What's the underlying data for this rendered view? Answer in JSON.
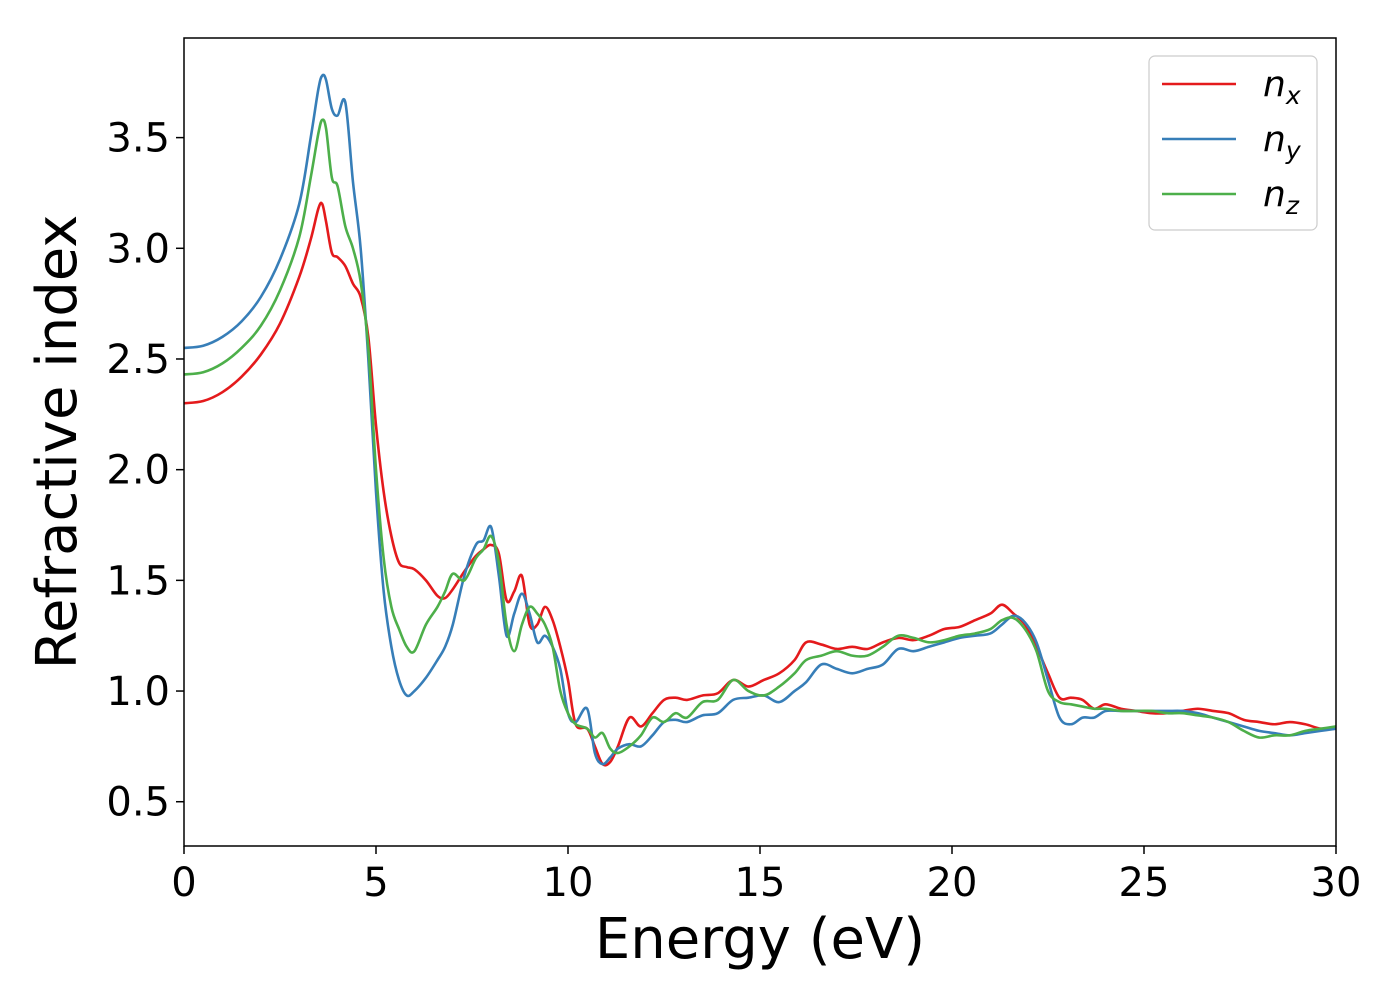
{
  "chart_data": {
    "type": "line",
    "xlabel": "Energy (eV)",
    "ylabel": "Refractive index",
    "xlim": [
      0,
      30
    ],
    "ylim": [
      0.3,
      3.95
    ],
    "xticks": [
      0,
      5,
      10,
      15,
      20,
      25,
      30
    ],
    "xtick_labels": [
      "0",
      "5",
      "10",
      "15",
      "20",
      "25",
      "30"
    ],
    "yticks": [
      0.5,
      1.0,
      1.5,
      2.0,
      2.5,
      3.0,
      3.5
    ],
    "ytick_labels": [
      "0.5",
      "1.0",
      "1.5",
      "2.0",
      "2.5",
      "3.0",
      "3.5"
    ],
    "grid": false,
    "legend_position": "top-right",
    "series": [
      {
        "name": "n",
        "subscript": "x",
        "color": "#e41a1c",
        "x": [
          0,
          0.5,
          1,
          1.5,
          2,
          2.5,
          3,
          3.3,
          3.5,
          3.6,
          3.7,
          3.85,
          4.0,
          4.2,
          4.4,
          4.6,
          4.8,
          5.0,
          5.2,
          5.4,
          5.6,
          5.8,
          6.0,
          6.3,
          6.6,
          6.8,
          7.0,
          7.3,
          7.6,
          7.8,
          8.0,
          8.2,
          8.4,
          8.6,
          8.8,
          9.0,
          9.2,
          9.4,
          9.6,
          9.8,
          10.0,
          10.2,
          10.5,
          10.7,
          10.9,
          11.1,
          11.3,
          11.6,
          11.9,
          12.2,
          12.5,
          12.8,
          13.1,
          13.5,
          13.9,
          14.3,
          14.7,
          15.1,
          15.5,
          15.9,
          16.2,
          16.6,
          17.0,
          17.4,
          17.8,
          18.2,
          18.6,
          19.0,
          19.4,
          19.8,
          20.2,
          20.6,
          21.0,
          21.3,
          21.6,
          21.9,
          22.2,
          22.5,
          22.8,
          23.1,
          23.4,
          23.7,
          24.0,
          24.4,
          24.8,
          25.2,
          25.6,
          26.0,
          26.4,
          26.8,
          27.2,
          27.6,
          28.0,
          28.4,
          28.8,
          29.2,
          29.6,
          30.0
        ],
        "y": [
          2.3,
          2.31,
          2.35,
          2.42,
          2.52,
          2.66,
          2.87,
          3.04,
          3.18,
          3.2,
          3.12,
          2.98,
          2.96,
          2.92,
          2.84,
          2.78,
          2.6,
          2.2,
          1.9,
          1.7,
          1.58,
          1.56,
          1.55,
          1.5,
          1.43,
          1.42,
          1.46,
          1.54,
          1.61,
          1.64,
          1.66,
          1.62,
          1.41,
          1.45,
          1.52,
          1.3,
          1.3,
          1.38,
          1.32,
          1.2,
          1.05,
          0.85,
          0.83,
          0.75,
          0.67,
          0.68,
          0.75,
          0.88,
          0.84,
          0.9,
          0.96,
          0.97,
          0.96,
          0.98,
          0.99,
          1.05,
          1.02,
          1.05,
          1.08,
          1.14,
          1.22,
          1.21,
          1.19,
          1.2,
          1.19,
          1.22,
          1.24,
          1.23,
          1.25,
          1.28,
          1.29,
          1.32,
          1.35,
          1.39,
          1.35,
          1.3,
          1.2,
          1.08,
          0.97,
          0.97,
          0.96,
          0.92,
          0.94,
          0.92,
          0.91,
          0.9,
          0.9,
          0.91,
          0.92,
          0.91,
          0.9,
          0.87,
          0.86,
          0.85,
          0.86,
          0.85,
          0.83,
          0.83
        ]
      },
      {
        "name": "n",
        "subscript": "y",
        "color": "#377eb8",
        "x": [
          0,
          0.5,
          1,
          1.5,
          2,
          2.5,
          3,
          3.3,
          3.5,
          3.6,
          3.7,
          3.85,
          4.0,
          4.2,
          4.4,
          4.6,
          4.8,
          5.0,
          5.2,
          5.4,
          5.6,
          5.8,
          6.0,
          6.3,
          6.6,
          6.8,
          7.0,
          7.3,
          7.6,
          7.8,
          8.0,
          8.2,
          8.4,
          8.6,
          8.8,
          9.0,
          9.2,
          9.4,
          9.6,
          9.8,
          10.0,
          10.2,
          10.5,
          10.7,
          10.9,
          11.1,
          11.3,
          11.6,
          11.9,
          12.2,
          12.5,
          12.8,
          13.1,
          13.5,
          13.9,
          14.3,
          14.7,
          15.1,
          15.5,
          15.9,
          16.2,
          16.6,
          17.0,
          17.4,
          17.8,
          18.2,
          18.6,
          19.0,
          19.4,
          19.8,
          20.2,
          20.6,
          21.0,
          21.3,
          21.6,
          21.9,
          22.2,
          22.5,
          22.8,
          23.1,
          23.4,
          23.7,
          24.0,
          24.4,
          24.8,
          25.2,
          25.6,
          26.0,
          26.4,
          26.8,
          27.2,
          27.6,
          28.0,
          28.4,
          28.8,
          29.2,
          29.6,
          30.0
        ],
        "y": [
          2.55,
          2.56,
          2.6,
          2.67,
          2.78,
          2.95,
          3.2,
          3.5,
          3.72,
          3.78,
          3.76,
          3.63,
          3.6,
          3.66,
          3.3,
          3.0,
          2.5,
          1.9,
          1.45,
          1.2,
          1.05,
          0.98,
          1.0,
          1.06,
          1.14,
          1.2,
          1.3,
          1.52,
          1.66,
          1.68,
          1.74,
          1.52,
          1.25,
          1.35,
          1.44,
          1.35,
          1.22,
          1.25,
          1.2,
          1.1,
          0.9,
          0.86,
          0.92,
          0.72,
          0.67,
          0.7,
          0.74,
          0.76,
          0.75,
          0.8,
          0.86,
          0.87,
          0.86,
          0.89,
          0.9,
          0.96,
          0.97,
          0.98,
          0.95,
          1.0,
          1.04,
          1.12,
          1.1,
          1.08,
          1.1,
          1.12,
          1.19,
          1.18,
          1.2,
          1.22,
          1.24,
          1.25,
          1.26,
          1.3,
          1.34,
          1.31,
          1.22,
          1.05,
          0.88,
          0.85,
          0.88,
          0.88,
          0.91,
          0.91,
          0.91,
          0.91,
          0.91,
          0.91,
          0.9,
          0.88,
          0.86,
          0.84,
          0.82,
          0.81,
          0.8,
          0.81,
          0.82,
          0.83
        ]
      },
      {
        "name": "n",
        "subscript": "z",
        "color": "#4daf4a",
        "x": [
          0,
          0.5,
          1,
          1.5,
          2,
          2.5,
          3,
          3.3,
          3.5,
          3.6,
          3.7,
          3.85,
          4.0,
          4.2,
          4.4,
          4.6,
          4.8,
          5.0,
          5.2,
          5.4,
          5.6,
          5.8,
          6.0,
          6.3,
          6.6,
          6.8,
          7.0,
          7.3,
          7.6,
          7.8,
          8.0,
          8.2,
          8.4,
          8.6,
          8.8,
          9.0,
          9.2,
          9.4,
          9.6,
          9.8,
          10.0,
          10.2,
          10.5,
          10.7,
          10.9,
          11.1,
          11.3,
          11.6,
          11.9,
          12.2,
          12.5,
          12.8,
          13.1,
          13.5,
          13.9,
          14.3,
          14.7,
          15.1,
          15.5,
          15.9,
          16.2,
          16.6,
          17.0,
          17.4,
          17.8,
          18.2,
          18.6,
          19.0,
          19.4,
          19.8,
          20.2,
          20.6,
          21.0,
          21.3,
          21.6,
          21.9,
          22.2,
          22.5,
          22.8,
          23.1,
          23.4,
          23.7,
          24.0,
          24.4,
          24.8,
          25.2,
          25.6,
          26.0,
          26.4,
          26.8,
          27.2,
          27.6,
          28.0,
          28.4,
          28.8,
          29.2,
          29.6,
          30.0
        ],
        "y": [
          2.43,
          2.44,
          2.48,
          2.55,
          2.65,
          2.81,
          3.05,
          3.32,
          3.52,
          3.58,
          3.54,
          3.32,
          3.28,
          3.1,
          3.0,
          2.85,
          2.55,
          2.0,
          1.6,
          1.38,
          1.28,
          1.2,
          1.18,
          1.3,
          1.38,
          1.45,
          1.53,
          1.5,
          1.6,
          1.64,
          1.7,
          1.58,
          1.3,
          1.18,
          1.3,
          1.38,
          1.35,
          1.3,
          1.2,
          1.0,
          0.9,
          0.85,
          0.83,
          0.79,
          0.81,
          0.74,
          0.72,
          0.75,
          0.8,
          0.88,
          0.86,
          0.9,
          0.88,
          0.95,
          0.96,
          1.05,
          1.0,
          0.98,
          1.02,
          1.08,
          1.14,
          1.16,
          1.18,
          1.16,
          1.16,
          1.2,
          1.25,
          1.24,
          1.22,
          1.23,
          1.25,
          1.26,
          1.28,
          1.32,
          1.33,
          1.28,
          1.18,
          1.0,
          0.95,
          0.94,
          0.93,
          0.92,
          0.92,
          0.91,
          0.91,
          0.91,
          0.9,
          0.9,
          0.89,
          0.88,
          0.86,
          0.82,
          0.79,
          0.8,
          0.8,
          0.82,
          0.83,
          0.84
        ]
      }
    ]
  }
}
